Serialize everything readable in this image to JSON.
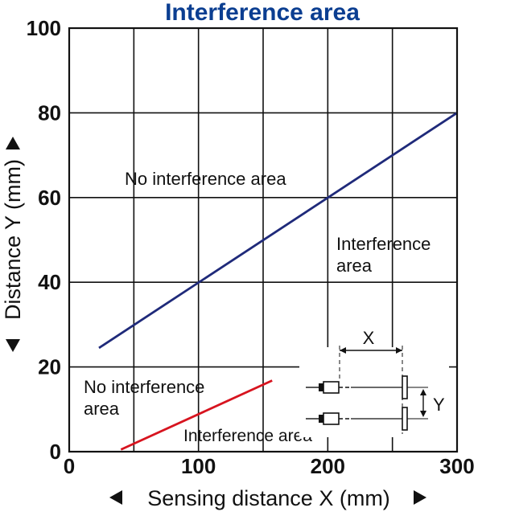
{
  "colors": {
    "title": "#0b3e91",
    "series1": "#1f2a7a",
    "series2": "#d7141f",
    "grid": "#111111"
  },
  "chart_data": {
    "type": "line",
    "title": "Interference area",
    "xlabel": "Sensing distance X (mm)",
    "ylabel": "Distance Y (mm)",
    "xlim": [
      0,
      300
    ],
    "ylim": [
      0,
      100
    ],
    "x_ticks": [
      "0",
      "100",
      "200",
      "300"
    ],
    "y_ticks": [
      "0",
      "20",
      "40",
      "60",
      "80",
      "100"
    ],
    "grid": true,
    "series": [
      {
        "color": "#1f2a7a",
        "points": [
          [
            23,
            24.5
          ],
          [
            300,
            80
          ]
        ]
      },
      {
        "color": "#d7141f",
        "points": [
          [
            40,
            0.5
          ],
          [
            157,
            16.8
          ]
        ]
      }
    ],
    "annotations": {
      "upper_no_interference": "No interference area",
      "upper_interference_line1": "Interference",
      "upper_interference_line2": "area",
      "lower_no_interference_line1": "No interference",
      "lower_no_interference_line2": "area",
      "lower_interference": "Interference area"
    },
    "diagram_labels": {
      "x": "X",
      "y": "Y"
    }
  }
}
